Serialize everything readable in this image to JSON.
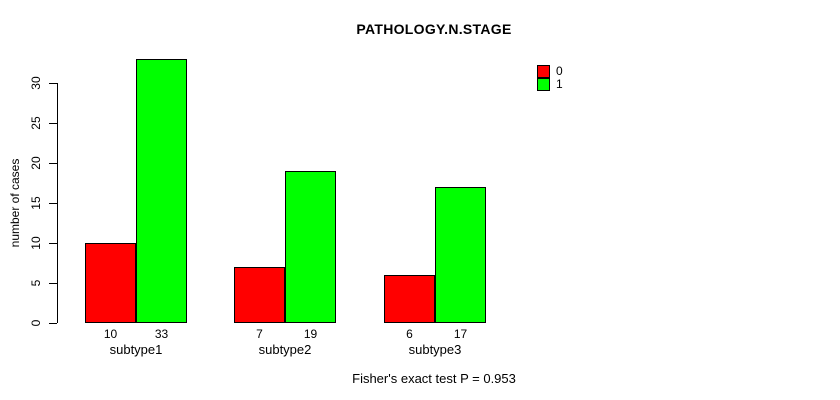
{
  "chart_data": {
    "type": "bar",
    "title": "PATHOLOGY.N.STAGE",
    "ylabel": "number of cases",
    "xlabel": "",
    "categories": [
      "subtype1",
      "subtype2",
      "subtype3"
    ],
    "series": [
      {
        "name": "0",
        "color": "#ff0000",
        "values": [
          10,
          7,
          6
        ]
      },
      {
        "name": "1",
        "color": "#00ff00",
        "values": [
          33,
          19,
          17
        ]
      }
    ],
    "bar_count_labels": [
      [
        "10",
        "33"
      ],
      [
        "7",
        "19"
      ],
      [
        "6",
        "17"
      ]
    ],
    "yticks": [
      0,
      5,
      10,
      15,
      20,
      25,
      30
    ],
    "ylim": [
      0,
      33
    ],
    "grid": false,
    "legend_position": "top-right",
    "legend_entries": [
      "0",
      "1"
    ],
    "annotation": "Fisher's exact test P = 0.953",
    "colors": {
      "background": "#ffffff",
      "axis": "#000000",
      "text": "#000000",
      "bar_border": "#000000"
    }
  }
}
